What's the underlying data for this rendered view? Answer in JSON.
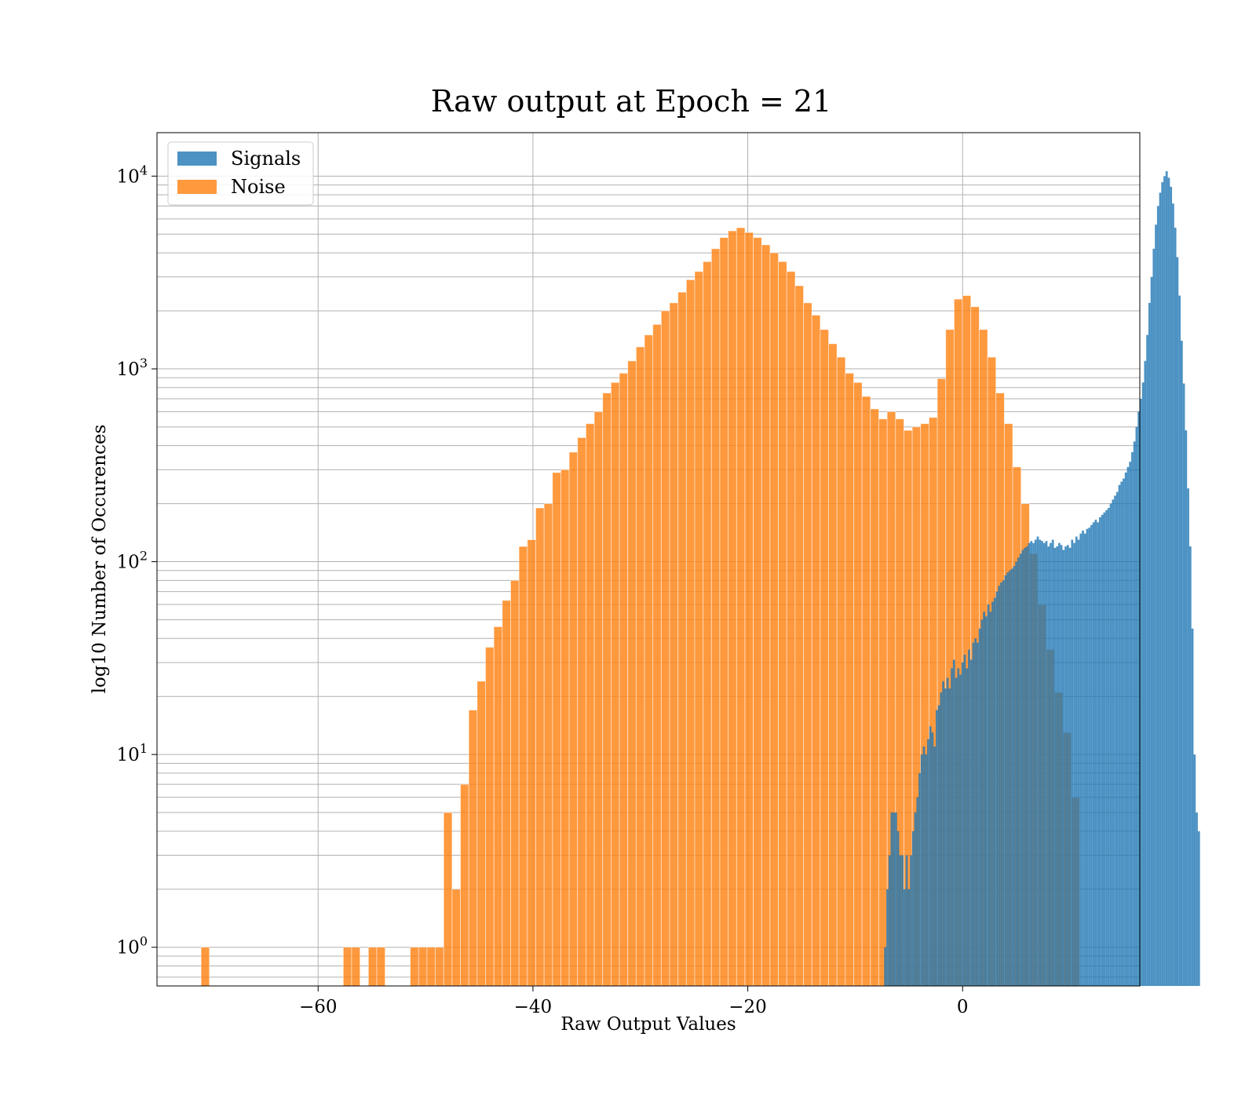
{
  "chart_data": {
    "type": "bar",
    "title": "Raw output at Epoch = 21",
    "xlabel": "Raw Output Values",
    "ylabel": "log10 Number of Occurences",
    "xlim": [
      -75,
      16.5
    ],
    "ylim": [
      0.63,
      16800
    ],
    "y_scale": "log",
    "grid": true,
    "legend_position": "top-left",
    "x_ticks": [
      -60,
      -40,
      -20,
      0
    ],
    "x_tick_labels": [
      "−60",
      "−40",
      "−20",
      "0"
    ],
    "y_ticks": [
      1,
      10,
      100,
      1000,
      10000
    ],
    "y_tick_labels": [
      {
        "base": "10",
        "exp": "0"
      },
      {
        "base": "10",
        "exp": "1"
      },
      {
        "base": "10",
        "exp": "2"
      },
      {
        "base": "10",
        "exp": "3"
      },
      {
        "base": "10",
        "exp": "4"
      }
    ],
    "series": [
      {
        "name": "Signals",
        "color": "#1f77b4",
        "opacity": 0.8,
        "bin_start": -7.5,
        "bin_width": 0.2,
        "values": [
          0,
          1,
          2,
          3,
          5,
          5,
          5,
          4,
          3,
          3,
          2,
          3,
          2,
          3,
          4,
          5,
          6,
          8,
          10,
          11,
          10,
          12,
          14,
          13,
          11,
          17,
          18,
          21,
          24,
          22,
          25,
          22,
          28,
          31,
          25,
          28,
          26,
          30,
          33,
          28,
          35,
          31,
          38,
          40,
          38,
          45,
          50,
          55,
          52,
          60,
          55,
          62,
          65,
          70,
          75,
          78,
          80,
          85,
          88,
          90,
          92,
          95,
          100,
          105,
          110,
          115,
          118,
          120,
          125,
          128,
          125,
          130,
          135,
          130,
          128,
          125,
          128,
          120,
          125,
          130,
          118,
          120,
          125,
          122,
          115,
          120,
          122,
          118,
          130,
          125,
          135,
          130,
          140,
          145,
          140,
          148,
          150,
          155,
          160,
          165,
          160,
          170,
          175,
          180,
          185,
          190,
          200,
          210,
          220,
          230,
          250,
          260,
          270,
          290,
          310,
          330,
          370,
          420,
          500,
          600,
          700,
          850,
          1100,
          1500,
          2200,
          3000,
          4200,
          5600,
          7000,
          8200,
          9300,
          10000,
          10600,
          9800,
          8800,
          7200,
          5400,
          3800,
          2400,
          1400,
          840,
          480,
          240,
          120,
          45,
          10,
          5,
          4
        ]
      },
      {
        "name": "Noise",
        "color": "#ff7f0e",
        "opacity": 0.8,
        "bin_start": -70.9,
        "bin_width": 0.779,
        "values": [
          1,
          0,
          0,
          0,
          0,
          0,
          0,
          0,
          0,
          0,
          0,
          0,
          0,
          0,
          0,
          0,
          0,
          1,
          1,
          0,
          1,
          1,
          0,
          0,
          0,
          1,
          1,
          1,
          1,
          5,
          2,
          7,
          17,
          24,
          36,
          46,
          63,
          80,
          120,
          130,
          190,
          200,
          290,
          300,
          370,
          440,
          520,
          600,
          750,
          850,
          950,
          1100,
          1300,
          1500,
          1700,
          2000,
          2200,
          2500,
          2900,
          3200,
          3600,
          4200,
          4800,
          5200,
          5400,
          5100,
          4800,
          4400,
          4000,
          3600,
          3200,
          2700,
          2200,
          1900,
          1600,
          1350,
          1150,
          950,
          850,
          720,
          620,
          550,
          600,
          550,
          480,
          500,
          520,
          560,
          890,
          1600,
          2300,
          2400,
          2100,
          1600,
          1150,
          750,
          520,
          310,
          200,
          110,
          60,
          35,
          21,
          13,
          6
        ]
      }
    ]
  }
}
